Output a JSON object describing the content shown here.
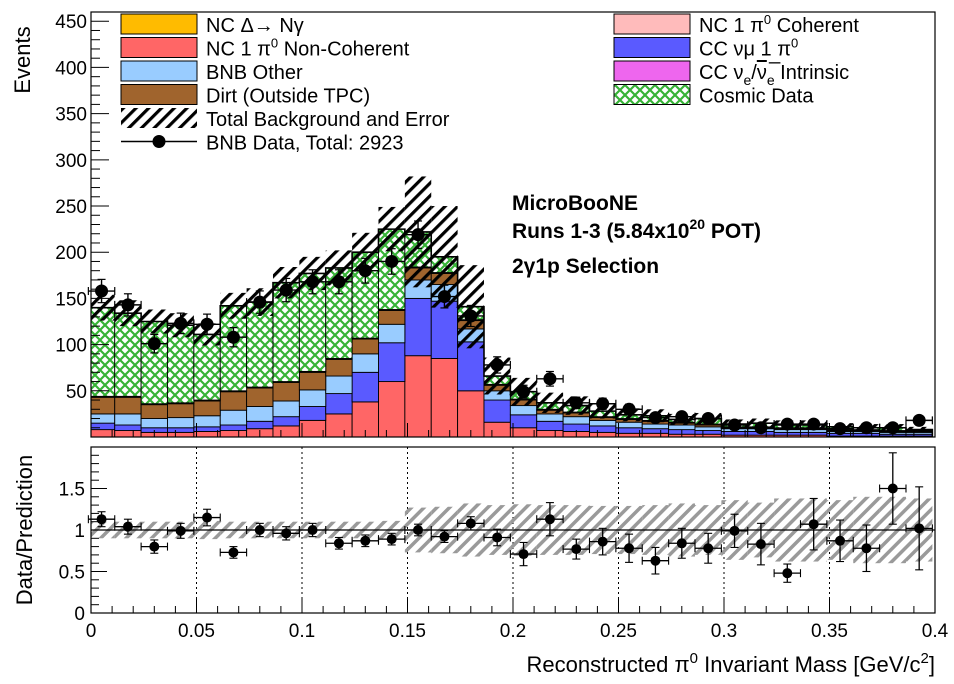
{
  "chart_data": [
    {
      "type": "bar",
      "subtype": "stacked-histogram",
      "ylabel": "Events",
      "x": [
        0.005,
        0.0175,
        0.03,
        0.0425,
        0.055,
        0.0675,
        0.08,
        0.0925,
        0.105,
        0.1175,
        0.13,
        0.1425,
        0.155,
        0.1675,
        0.18,
        0.1925,
        0.205,
        0.2175,
        0.23,
        0.2425,
        0.255,
        0.2675,
        0.28,
        0.2925,
        0.305,
        0.3175,
        0.33,
        0.3425,
        0.355,
        0.3675,
        0.38,
        0.3925
      ],
      "xlim": [
        0,
        0.4
      ],
      "ylim": [
        0,
        460
      ],
      "ytick_labels": [
        "50",
        "100",
        "150",
        "200",
        "250",
        "300",
        "350",
        "400",
        "450"
      ],
      "series": [
        {
          "name": "NC 1 π⁰ Non-Coherent",
          "color": "#ff6666",
          "values": [
            8,
            7,
            5,
            5,
            6,
            7,
            9,
            12,
            18,
            25,
            38,
            60,
            88,
            85,
            50,
            16,
            10,
            7,
            6,
            5,
            4,
            4,
            3,
            3,
            2,
            2,
            2,
            2,
            1,
            1,
            1,
            1
          ]
        },
        {
          "name": "CC νμ 1 π⁰",
          "color": "#5a5aff",
          "values": [
            7,
            6,
            5,
            5,
            5,
            6,
            8,
            10,
            15,
            22,
            32,
            42,
            62,
            62,
            53,
            24,
            14,
            10,
            8,
            7,
            6,
            5,
            5,
            4,
            4,
            4,
            3,
            3,
            3,
            3,
            2,
            2
          ]
        },
        {
          "name": "CC νe/νe̅ Intrinsic",
          "color": "#ee66ee",
          "values": [
            0,
            0,
            0,
            0,
            0,
            0,
            0,
            0,
            0,
            0,
            0,
            0,
            0,
            0,
            0,
            0,
            0,
            0,
            0,
            0,
            0,
            0,
            0,
            0,
            0,
            0,
            0,
            0,
            0,
            0,
            0,
            0
          ]
        },
        {
          "name": "BNB Other",
          "color": "#99ccff",
          "values": [
            10,
            12,
            10,
            11,
            12,
            16,
            16,
            17,
            18,
            19,
            20,
            20,
            20,
            18,
            14,
            10,
            10,
            8,
            8,
            6,
            6,
            5,
            5,
            4,
            3,
            3,
            3,
            3,
            2,
            2,
            2,
            2
          ]
        },
        {
          "name": "Dirt (Outside TPC)",
          "color": "#a0642d",
          "values": [
            18,
            18,
            15,
            15,
            16,
            20,
            20,
            20,
            19,
            18,
            16,
            15,
            13,
            12,
            9,
            6,
            6,
            4,
            4,
            3,
            3,
            3,
            2,
            2,
            1,
            1,
            1,
            1,
            1,
            1,
            1,
            1
          ]
        },
        {
          "name": "NC 1 π⁰ Coherent",
          "color": "#ffbbbb",
          "values": [
            0,
            0,
            0,
            0,
            0,
            0,
            0,
            0,
            0,
            0,
            0,
            0,
            0,
            0,
            0,
            0,
            0,
            0,
            0,
            0,
            0,
            0,
            0,
            0,
            0,
            0,
            0,
            0,
            0,
            0,
            0,
            0
          ]
        },
        {
          "name": "NC Δ→ Nγ",
          "color": "#ffbb00",
          "values": [
            1,
            1,
            1,
            1,
            1,
            1,
            1,
            1,
            1,
            1,
            1,
            1,
            1,
            1,
            1,
            1,
            1,
            1,
            1,
            1,
            1,
            1,
            1,
            1,
            1,
            1,
            1,
            1,
            1,
            1,
            1,
            1
          ]
        },
        {
          "name": "Cosmic Data",
          "color": "#44bb44",
          "values": [
            96,
            90,
            89,
            84,
            71,
            92,
            92,
            107,
            106,
            98,
            93,
            87,
            38,
            17,
            14,
            9,
            8,
            7,
            7,
            6,
            4,
            5,
            3,
            6,
            3,
            4,
            3,
            3,
            3,
            2,
            3,
            1
          ]
        }
      ],
      "total_background": [
        140,
        134,
        125,
        121,
        111,
        142,
        146,
        167,
        177,
        183,
        200,
        225,
        222,
        195,
        141,
        66,
        49,
        37,
        34,
        28,
        24,
        23,
        19,
        20,
        14,
        15,
        13,
        13,
        11,
        10,
        10,
        8
      ],
      "background_error": [
        14,
        14,
        13,
        13,
        12,
        14,
        15,
        17,
        18,
        19,
        21,
        24,
        60,
        55,
        45,
        20,
        15,
        11,
        10,
        8,
        7,
        7,
        6,
        6,
        5,
        5,
        5,
        5,
        4,
        4,
        4,
        3
      ],
      "data": {
        "name": "BNB Data, Total: 2923",
        "values": [
          158,
          143,
          101,
          123,
          122,
          108,
          146,
          159,
          168,
          168,
          180,
          190,
          219,
          152,
          131,
          78,
          49,
          63,
          37,
          36,
          30,
          21,
          22,
          20,
          13,
          10,
          14,
          14,
          9,
          10,
          10,
          18
        ],
        "errors": [
          12.6,
          12,
          10,
          11.1,
          11,
          10.4,
          12.1,
          12.6,
          13,
          13,
          13.4,
          13.8,
          14.8,
          12.3,
          11.4,
          8.8,
          7,
          7.9,
          6.1,
          6,
          5.5,
          4.6,
          4.7,
          4.5,
          3.6,
          3.2,
          3.7,
          3.7,
          3,
          3.2,
          3.2,
          4.2
        ]
      },
      "legend": {
        "position": "top",
        "left": [
          "NC Δ→ Nγ",
          "NC 1 π⁰ Non-Coherent",
          "BNB Other",
          "Dirt (Outside TPC)",
          "Total Background and Error",
          "BNB Data, Total: 2923"
        ],
        "right": [
          "NC 1 π⁰ Coherent",
          "CC νμ 1 π⁰",
          "CC νe/νe̅ Intrinsic",
          "Cosmic Data"
        ]
      },
      "annotations": [
        "MicroBooNE",
        "Runs 1-3  (5.84x10²⁰ POT)",
        "2γ1p Selection"
      ]
    },
    {
      "type": "scatter",
      "subtype": "ratio",
      "ylabel": "Data/Prediction",
      "xlabel": "Reconstructed π⁰ Invariant Mass [GeV/c²]",
      "xlim": [
        0,
        0.4
      ],
      "ylim": [
        0,
        2
      ],
      "xtick_labels": [
        "0",
        "0.05",
        "0.1",
        "0.15",
        "0.2",
        "0.25",
        "0.3",
        "0.35",
        "0.4"
      ],
      "ytick_labels": [
        "0",
        "0.5",
        "1",
        "1.5"
      ],
      "reference_line": 1,
      "grid": "dotted vertical lines at 0.05 steps",
      "x": [
        0.005,
        0.0175,
        0.03,
        0.0425,
        0.055,
        0.0675,
        0.08,
        0.0925,
        0.105,
        0.1175,
        0.13,
        0.1425,
        0.155,
        0.1675,
        0.18,
        0.1925,
        0.205,
        0.2175,
        0.23,
        0.2425,
        0.255,
        0.2675,
        0.28,
        0.2925,
        0.305,
        0.3175,
        0.33,
        0.3425,
        0.355,
        0.3675,
        0.38,
        0.3925
      ],
      "values": [
        1.13,
        1.04,
        0.8,
        0.99,
        1.15,
        0.73,
        1.0,
        0.96,
        1.0,
        0.84,
        0.87,
        0.89,
        1.0,
        0.92,
        1.08,
        0.91,
        0.71,
        1.13,
        0.77,
        0.86,
        0.78,
        0.63,
        0.84,
        0.78,
        0.99,
        0.83,
        0.48,
        1.07,
        0.87,
        0.78,
        1.5,
        1.02
      ],
      "errors": [
        0.09,
        0.09,
        0.08,
        0.09,
        0.1,
        0.07,
        0.08,
        0.08,
        0.08,
        0.07,
        0.07,
        0.07,
        0.07,
        0.07,
        0.08,
        0.1,
        0.14,
        0.2,
        0.12,
        0.16,
        0.17,
        0.16,
        0.18,
        0.18,
        0.2,
        0.25,
        0.11,
        0.31,
        0.25,
        0.28,
        0.43,
        0.5
      ],
      "band_error": [
        0.1,
        0.1,
        0.1,
        0.1,
        0.11,
        0.1,
        0.1,
        0.1,
        0.1,
        0.1,
        0.1,
        0.11,
        0.27,
        0.28,
        0.32,
        0.3,
        0.31,
        0.3,
        0.3,
        0.29,
        0.29,
        0.3,
        0.32,
        0.3,
        0.36,
        0.33,
        0.38,
        0.38,
        0.36,
        0.4,
        0.4,
        0.38
      ]
    }
  ]
}
